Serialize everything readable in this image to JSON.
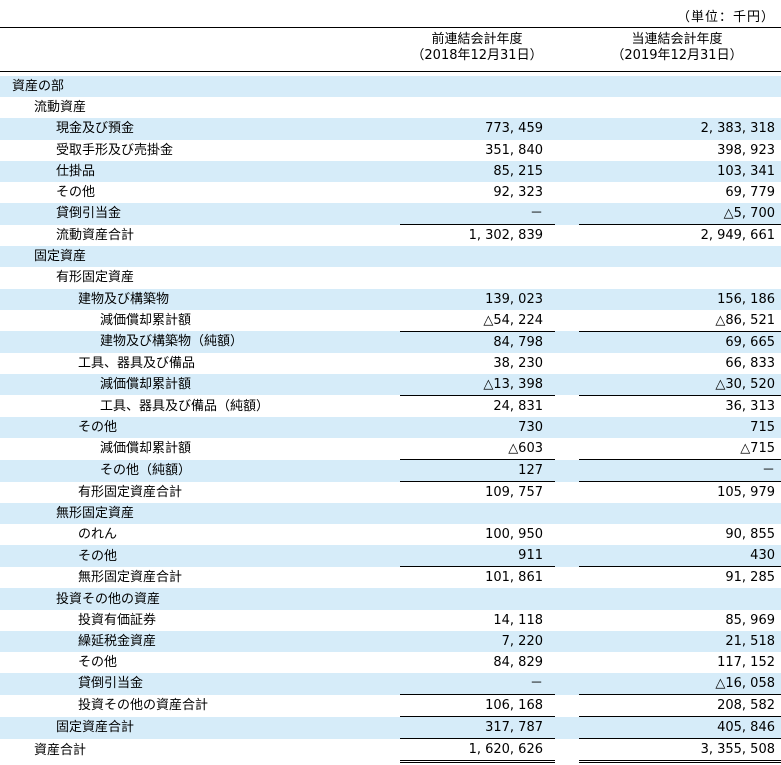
{
  "unit_label": "（単位：千円）",
  "columns": {
    "prev": {
      "line1": "前連結会計年度",
      "line2": "（2018年12月31日）"
    },
    "curr": {
      "line1": "当連結会計年度",
      "line2": "（2019年12月31日）"
    }
  },
  "rows": [
    {
      "label": "資産の部",
      "indent": 0,
      "prev": "",
      "curr": ""
    },
    {
      "label": "流動資産",
      "indent": 1,
      "prev": "",
      "curr": ""
    },
    {
      "label": "現金及び預金",
      "indent": 2,
      "prev": "773, 459",
      "curr": "2, 383, 318"
    },
    {
      "label": "受取手形及び売掛金",
      "indent": 2,
      "prev": "351, 840",
      "curr": "398, 923"
    },
    {
      "label": "仕掛品",
      "indent": 2,
      "prev": "85, 215",
      "curr": "103, 341"
    },
    {
      "label": "その他",
      "indent": 2,
      "prev": "92, 323",
      "curr": "69, 779"
    },
    {
      "label": "貸倒引当金",
      "indent": 2,
      "prev": "－",
      "curr": "△5, 700"
    },
    {
      "label": "流動資産合計",
      "indent": 2,
      "prev": "1, 302, 839",
      "curr": "2, 949, 661",
      "total": true
    },
    {
      "label": "固定資産",
      "indent": 1,
      "prev": "",
      "curr": ""
    },
    {
      "label": "有形固定資産",
      "indent": 2,
      "prev": "",
      "curr": ""
    },
    {
      "label": "建物及び構築物",
      "indent": 3,
      "prev": "139, 023",
      "curr": "156, 186"
    },
    {
      "label": "減価償却累計額",
      "indent": 4,
      "prev": "△54, 224",
      "curr": "△86, 521"
    },
    {
      "label": "建物及び構築物（純額）",
      "indent": 4,
      "prev": "84, 798",
      "curr": "69, 665",
      "total": true
    },
    {
      "label": "工具、器具及び備品",
      "indent": 3,
      "prev": "38, 230",
      "curr": "66, 833"
    },
    {
      "label": "減価償却累計額",
      "indent": 4,
      "prev": "△13, 398",
      "curr": "△30, 520"
    },
    {
      "label": "工具、器具及び備品（純額）",
      "indent": 4,
      "prev": "24, 831",
      "curr": "36, 313",
      "total": true
    },
    {
      "label": "その他",
      "indent": 3,
      "prev": "730",
      "curr": "715"
    },
    {
      "label": "減価償却累計額",
      "indent": 4,
      "prev": "△603",
      "curr": "△715"
    },
    {
      "label": "その他（純額）",
      "indent": 4,
      "prev": "127",
      "curr": "－",
      "total": true
    },
    {
      "label": "有形固定資産合計",
      "indent": 3,
      "prev": "109, 757",
      "curr": "105, 979",
      "total": true
    },
    {
      "label": "無形固定資産",
      "indent": 2,
      "prev": "",
      "curr": ""
    },
    {
      "label": "のれん",
      "indent": 3,
      "prev": "100, 950",
      "curr": "90, 855"
    },
    {
      "label": "その他",
      "indent": 3,
      "prev": "911",
      "curr": "430"
    },
    {
      "label": "無形固定資産合計",
      "indent": 3,
      "prev": "101, 861",
      "curr": "91, 285",
      "total": true
    },
    {
      "label": "投資その他の資産",
      "indent": 2,
      "prev": "",
      "curr": ""
    },
    {
      "label": "投資有価証券",
      "indent": 3,
      "prev": "14, 118",
      "curr": "85, 969"
    },
    {
      "label": "繰延税金資産",
      "indent": 3,
      "prev": "7, 220",
      "curr": "21, 518"
    },
    {
      "label": "その他",
      "indent": 3,
      "prev": "84, 829",
      "curr": "117, 152"
    },
    {
      "label": "貸倒引当金",
      "indent": 3,
      "prev": "－",
      "curr": "△16, 058"
    },
    {
      "label": "投資その他の資産合計",
      "indent": 3,
      "prev": "106, 168",
      "curr": "208, 582",
      "total": true
    },
    {
      "label": "固定資産合計",
      "indent": 2,
      "prev": "317, 787",
      "curr": "405, 846",
      "total": true
    },
    {
      "label": "資産合計",
      "indent": 1,
      "prev": "1, 620, 626",
      "curr": "3, 355, 508",
      "total": true,
      "grand": true
    }
  ]
}
